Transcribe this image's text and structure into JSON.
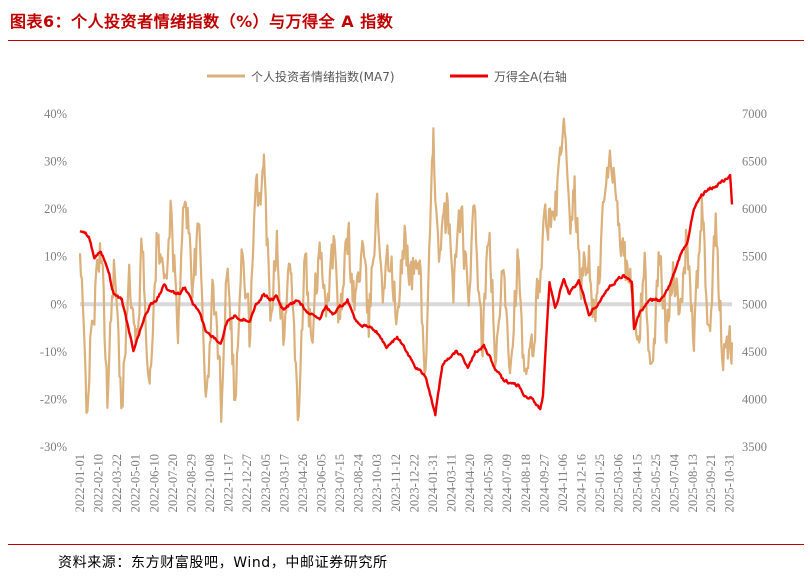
{
  "title": "图表6：个人投资者情绪指数（%）与万得全 A 指数",
  "source": "资料来源：东方财富股吧，Wind，中邮证券研究所",
  "chart_data": {
    "type": "line",
    "legend_position": "top-center",
    "series": [
      {
        "name": "个人投资者情绪指数(MA7)",
        "axis": "left",
        "color": "#dcb07a",
        "anchors": [
          [
            "2022-01-01",
            10
          ],
          [
            "2022-01-15",
            -20
          ],
          [
            "2022-02-01",
            0
          ],
          [
            "2022-02-15",
            12
          ],
          [
            "2022-03-01",
            -18
          ],
          [
            "2022-03-15",
            10
          ],
          [
            "2022-04-01",
            -24
          ],
          [
            "2022-04-15",
            8
          ],
          [
            "2022-05-01",
            -10
          ],
          [
            "2022-05-15",
            12
          ],
          [
            "2022-06-01",
            -18
          ],
          [
            "2022-06-15",
            14
          ],
          [
            "2022-07-01",
            5
          ],
          [
            "2022-07-15",
            18
          ],
          [
            "2022-08-01",
            -5
          ],
          [
            "2022-08-15",
            25
          ],
          [
            "2022-09-01",
            5
          ],
          [
            "2022-09-15",
            15
          ],
          [
            "2022-10-01",
            -21
          ],
          [
            "2022-10-15",
            5
          ],
          [
            "2022-11-01",
            -20
          ],
          [
            "2022-11-15",
            12
          ],
          [
            "2022-12-01",
            -21
          ],
          [
            "2022-12-15",
            10
          ],
          [
            "2023-01-01",
            -5
          ],
          [
            "2023-01-15",
            22
          ],
          [
            "2023-02-01",
            28
          ],
          [
            "2023-02-15",
            0
          ],
          [
            "2023-03-01",
            15
          ],
          [
            "2023-03-15",
            -8
          ],
          [
            "2023-04-01",
            12
          ],
          [
            "2023-04-15",
            -24
          ],
          [
            "2023-05-01",
            10
          ],
          [
            "2023-05-15",
            -10
          ],
          [
            "2023-06-01",
            15
          ],
          [
            "2023-06-15",
            0
          ],
          [
            "2023-07-01",
            12
          ],
          [
            "2023-07-15",
            -5
          ],
          [
            "2023-08-01",
            15
          ],
          [
            "2023-08-15",
            0
          ],
          [
            "2023-09-01",
            12
          ],
          [
            "2023-09-15",
            -5
          ],
          [
            "2023-10-01",
            22
          ],
          [
            "2023-10-15",
            5
          ],
          [
            "2023-11-01",
            10
          ],
          [
            "2023-11-15",
            -5
          ],
          [
            "2023-12-01",
            15
          ],
          [
            "2023-12-15",
            5
          ],
          [
            "2024-01-01",
            10
          ],
          [
            "2024-01-15",
            -15
          ],
          [
            "2024-02-01",
            33
          ],
          [
            "2024-02-15",
            10
          ],
          [
            "2024-03-01",
            20
          ],
          [
            "2024-03-15",
            5
          ],
          [
            "2024-04-01",
            20
          ],
          [
            "2024-04-15",
            0
          ],
          [
            "2024-05-01",
            20
          ],
          [
            "2024-05-15",
            -10
          ],
          [
            "2024-06-01",
            15
          ],
          [
            "2024-06-15",
            -15
          ],
          [
            "2024-07-01",
            10
          ],
          [
            "2024-07-15",
            -12
          ],
          [
            "2024-08-01",
            10
          ],
          [
            "2024-08-15",
            -18
          ],
          [
            "2024-09-01",
            -10
          ],
          [
            "2024-09-15",
            5
          ],
          [
            "2024-10-01",
            20
          ],
          [
            "2024-10-15",
            15
          ],
          [
            "2024-11-01",
            30
          ],
          [
            "2024-11-08",
            37
          ],
          [
            "2024-11-20",
            15
          ],
          [
            "2024-12-01",
            22
          ],
          [
            "2024-12-15",
            5
          ],
          [
            "2025-01-01",
            10
          ],
          [
            "2025-01-15",
            -5
          ],
          [
            "2025-02-01",
            20
          ],
          [
            "2025-02-15",
            30
          ],
          [
            "2025-03-01",
            25
          ],
          [
            "2025-03-15",
            10
          ],
          [
            "2025-04-01",
            5
          ],
          [
            "2025-04-15",
            -10
          ],
          [
            "2025-05-01",
            8
          ],
          [
            "2025-05-15",
            -16
          ],
          [
            "2025-06-01",
            10
          ],
          [
            "2025-06-15",
            -5
          ],
          [
            "2025-07-01",
            10
          ],
          [
            "2025-07-15",
            -5
          ],
          [
            "2025-08-01",
            16
          ],
          [
            "2025-08-15",
            -10
          ],
          [
            "2025-09-01",
            22
          ],
          [
            "2025-09-15",
            -8
          ],
          [
            "2025-10-01",
            15
          ],
          [
            "2025-10-15",
            -10
          ],
          [
            "2025-11-05",
            -8
          ]
        ]
      },
      {
        "name": "万得全A(右轴",
        "axis": "right",
        "color": "#ee0000",
        "anchors": [
          [
            "2022-01-01",
            5780
          ],
          [
            "2022-01-20",
            5720
          ],
          [
            "2022-02-01",
            5500
          ],
          [
            "2022-02-15",
            5550
          ],
          [
            "2022-03-01",
            5400
          ],
          [
            "2022-03-15",
            5100
          ],
          [
            "2022-04-01",
            5050
          ],
          [
            "2022-04-26",
            4500
          ],
          [
            "2022-05-15",
            4800
          ],
          [
            "2022-06-01",
            5000
          ],
          [
            "2022-06-15",
            5050
          ],
          [
            "2022-07-01",
            5200
          ],
          [
            "2022-07-15",
            5120
          ],
          [
            "2022-08-01",
            5100
          ],
          [
            "2022-08-15",
            5180
          ],
          [
            "2022-09-01",
            5000
          ],
          [
            "2022-09-15",
            4900
          ],
          [
            "2022-10-01",
            4700
          ],
          [
            "2022-10-31",
            4600
          ],
          [
            "2022-11-15",
            4850
          ],
          [
            "2022-12-01",
            4880
          ],
          [
            "2022-12-15",
            4850
          ],
          [
            "2023-01-01",
            4830
          ],
          [
            "2023-01-15",
            5000
          ],
          [
            "2023-02-01",
            5100
          ],
          [
            "2023-02-15",
            5050
          ],
          [
            "2023-03-01",
            5080
          ],
          [
            "2023-03-15",
            4950
          ],
          [
            "2023-04-01",
            5000
          ],
          [
            "2023-04-15",
            5040
          ],
          [
            "2023-05-01",
            4950
          ],
          [
            "2023-05-15",
            4900
          ],
          [
            "2023-06-01",
            4850
          ],
          [
            "2023-06-15",
            4980
          ],
          [
            "2023-07-01",
            4900
          ],
          [
            "2023-07-31",
            5050
          ],
          [
            "2023-08-15",
            4850
          ],
          [
            "2023-09-01",
            4780
          ],
          [
            "2023-09-15",
            4750
          ],
          [
            "2023-10-01",
            4720
          ],
          [
            "2023-10-23",
            4550
          ],
          [
            "2023-11-15",
            4650
          ],
          [
            "2023-12-01",
            4550
          ],
          [
            "2023-12-22",
            4350
          ],
          [
            "2024-01-15",
            4250
          ],
          [
            "2024-02-05",
            3850
          ],
          [
            "2024-02-20",
            4350
          ],
          [
            "2024-03-01",
            4420
          ],
          [
            "2024-03-20",
            4500
          ],
          [
            "2024-04-01",
            4450
          ],
          [
            "2024-04-15",
            4350
          ],
          [
            "2024-05-01",
            4500
          ],
          [
            "2024-05-20",
            4550
          ],
          [
            "2024-06-01",
            4450
          ],
          [
            "2024-06-15",
            4300
          ],
          [
            "2024-07-01",
            4200
          ],
          [
            "2024-07-15",
            4180
          ],
          [
            "2024-08-01",
            4150
          ],
          [
            "2024-08-15",
            4050
          ],
          [
            "2024-09-01",
            4000
          ],
          [
            "2024-09-18",
            3900
          ],
          [
            "2024-09-24",
            4050
          ],
          [
            "2024-10-08",
            5250
          ],
          [
            "2024-10-20",
            4950
          ],
          [
            "2024-11-08",
            5280
          ],
          [
            "2024-11-20",
            5100
          ],
          [
            "2024-12-10",
            5250
          ],
          [
            "2025-01-01",
            4900
          ],
          [
            "2025-01-20",
            5000
          ],
          [
            "2025-02-15",
            5200
          ],
          [
            "2025-03-15",
            5300
          ],
          [
            "2025-04-03",
            5250
          ],
          [
            "2025-04-08",
            4750
          ],
          [
            "2025-04-20",
            4900
          ],
          [
            "2025-05-15",
            5050
          ],
          [
            "2025-06-01",
            5050
          ],
          [
            "2025-06-20",
            5150
          ],
          [
            "2025-07-15",
            5500
          ],
          [
            "2025-08-01",
            5650
          ],
          [
            "2025-08-15",
            6000
          ],
          [
            "2025-08-31",
            6150
          ],
          [
            "2025-09-15",
            6200
          ],
          [
            "2025-10-01",
            6250
          ],
          [
            "2025-10-20",
            6300
          ],
          [
            "2025-11-01",
            6350
          ],
          [
            "2025-11-05",
            6050
          ]
        ]
      }
    ],
    "y_left": {
      "min": -30,
      "max": 40,
      "step": 10,
      "tick_labels": [
        "-30%",
        "-20%",
        "-10%",
        "0%",
        "10%",
        "20%",
        "30%",
        "40%"
      ]
    },
    "y_right": {
      "min": 3500,
      "max": 7000,
      "step": 500,
      "tick_labels": [
        "3500",
        "4000",
        "4500",
        "5000",
        "5500",
        "6000",
        "6500",
        "7000"
      ]
    },
    "x": {
      "start": "2022-01-01",
      "end": "2025-11-05"
    },
    "x_tick_labels": [
      "2022-01-01",
      "2022-02-10",
      "2022-03-22",
      "2022-05-01",
      "2022-06-10",
      "2022-07-20",
      "2022-08-29",
      "2022-10-08",
      "2022-11-17",
      "2022-12-27",
      "2023-02-05",
      "2023-03-17",
      "2023-04-26",
      "2023-06-05",
      "2023-07-15",
      "2023-08-24",
      "2023-10-03",
      "2023-11-12",
      "2023-12-22",
      "2024-01-31",
      "2024-03-11",
      "2024-04-20",
      "2024-05-30",
      "2024-07-09",
      "2024-08-18",
      "2024-09-27",
      "2024-11-06",
      "2024-12-16",
      "2025-01-25",
      "2025-03-06",
      "2025-04-15",
      "2025-05-25",
      "2025-07-04",
      "2025-08-13",
      "2025-09-21",
      "2025-10-31"
    ],
    "zero_line": true,
    "grid": false
  }
}
